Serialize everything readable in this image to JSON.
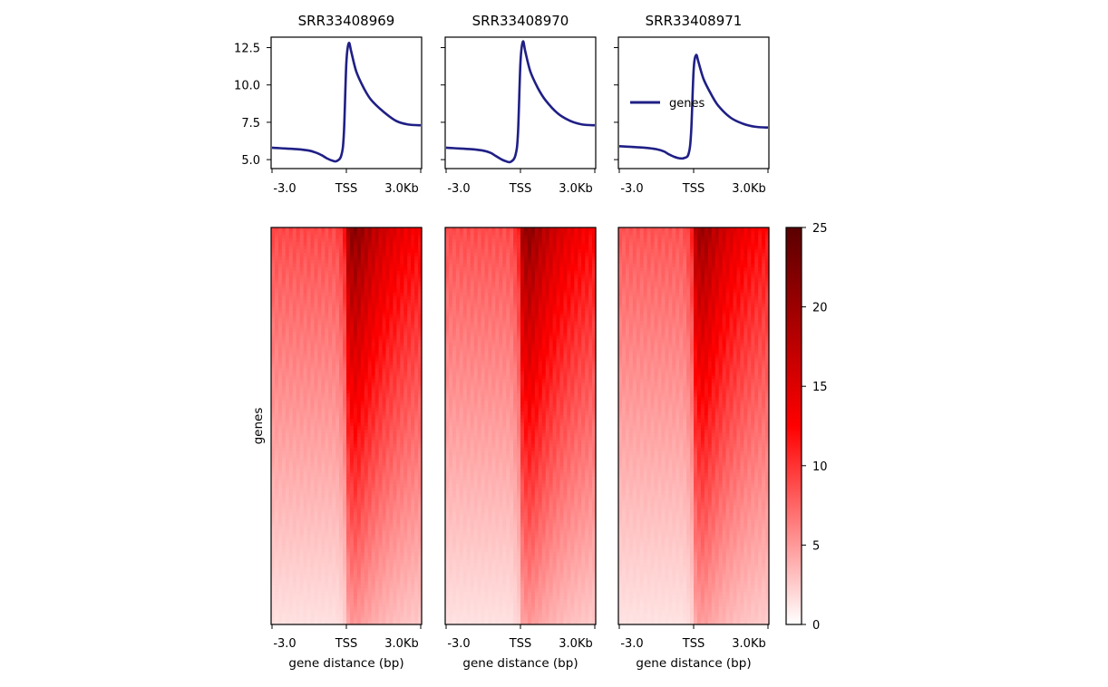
{
  "chart_data": {
    "type": "heatmap",
    "samples": [
      "SRR33408969",
      "SRR33408970",
      "SRR33408971"
    ],
    "profile": {
      "type": "line",
      "series_name": "genes",
      "color": "#1f1f86",
      "legend_label": "genes",
      "yticks": [
        5.0,
        7.5,
        10.0,
        12.5
      ],
      "ytick_labels": [
        "5.0",
        "7.5",
        "10.0",
        "12.5"
      ],
      "ylim": [
        4.4,
        13.2
      ],
      "x": [
        -3.0,
        -2.5,
        -2.0,
        -1.5,
        -1.2,
        -1.0,
        -0.8,
        -0.6,
        -0.4,
        -0.2,
        -0.1,
        0.0,
        0.1,
        0.2,
        0.4,
        0.7,
        1.0,
        1.5,
        2.0,
        2.5,
        3.0
      ],
      "series": [
        {
          "name": "SRR33408969",
          "values": [
            5.8,
            5.75,
            5.7,
            5.6,
            5.45,
            5.3,
            5.1,
            4.95,
            4.9,
            5.3,
            6.8,
            11.5,
            12.8,
            12.2,
            10.9,
            9.8,
            9.0,
            8.2,
            7.6,
            7.35,
            7.3
          ]
        },
        {
          "name": "SRR33408970",
          "values": [
            5.8,
            5.75,
            5.7,
            5.6,
            5.45,
            5.25,
            5.05,
            4.9,
            4.85,
            5.3,
            6.8,
            11.5,
            12.9,
            12.2,
            10.9,
            9.8,
            9.0,
            8.1,
            7.6,
            7.35,
            7.3
          ]
        },
        {
          "name": "SRR33408971",
          "values": [
            5.9,
            5.85,
            5.8,
            5.7,
            5.55,
            5.35,
            5.2,
            5.1,
            5.1,
            5.4,
            6.9,
            11.0,
            12.0,
            11.5,
            10.4,
            9.4,
            8.6,
            7.8,
            7.4,
            7.2,
            7.15
          ]
        }
      ]
    },
    "heatmap": {
      "ylabel": "genes",
      "xlabel": "gene distance (bp)",
      "colorbar": {
        "vmin": 0,
        "vmax": 25,
        "ticks": [
          0,
          5,
          10,
          15,
          20,
          25
        ],
        "tick_labels": [
          "0",
          "5",
          "10",
          "15",
          "20",
          "25"
        ],
        "colors": [
          "#ffffff",
          "#ff0000",
          "#5a0000"
        ]
      },
      "signal_top_flank": 9,
      "signal_top_peak": 21,
      "signal_bottom_flank": 1.5,
      "signal_bottom_peak": 5
    },
    "xticks": [
      "-3.0",
      "TSS",
      "3.0Kb"
    ],
    "x_range_kb": [
      -3.0,
      3.0
    ]
  }
}
